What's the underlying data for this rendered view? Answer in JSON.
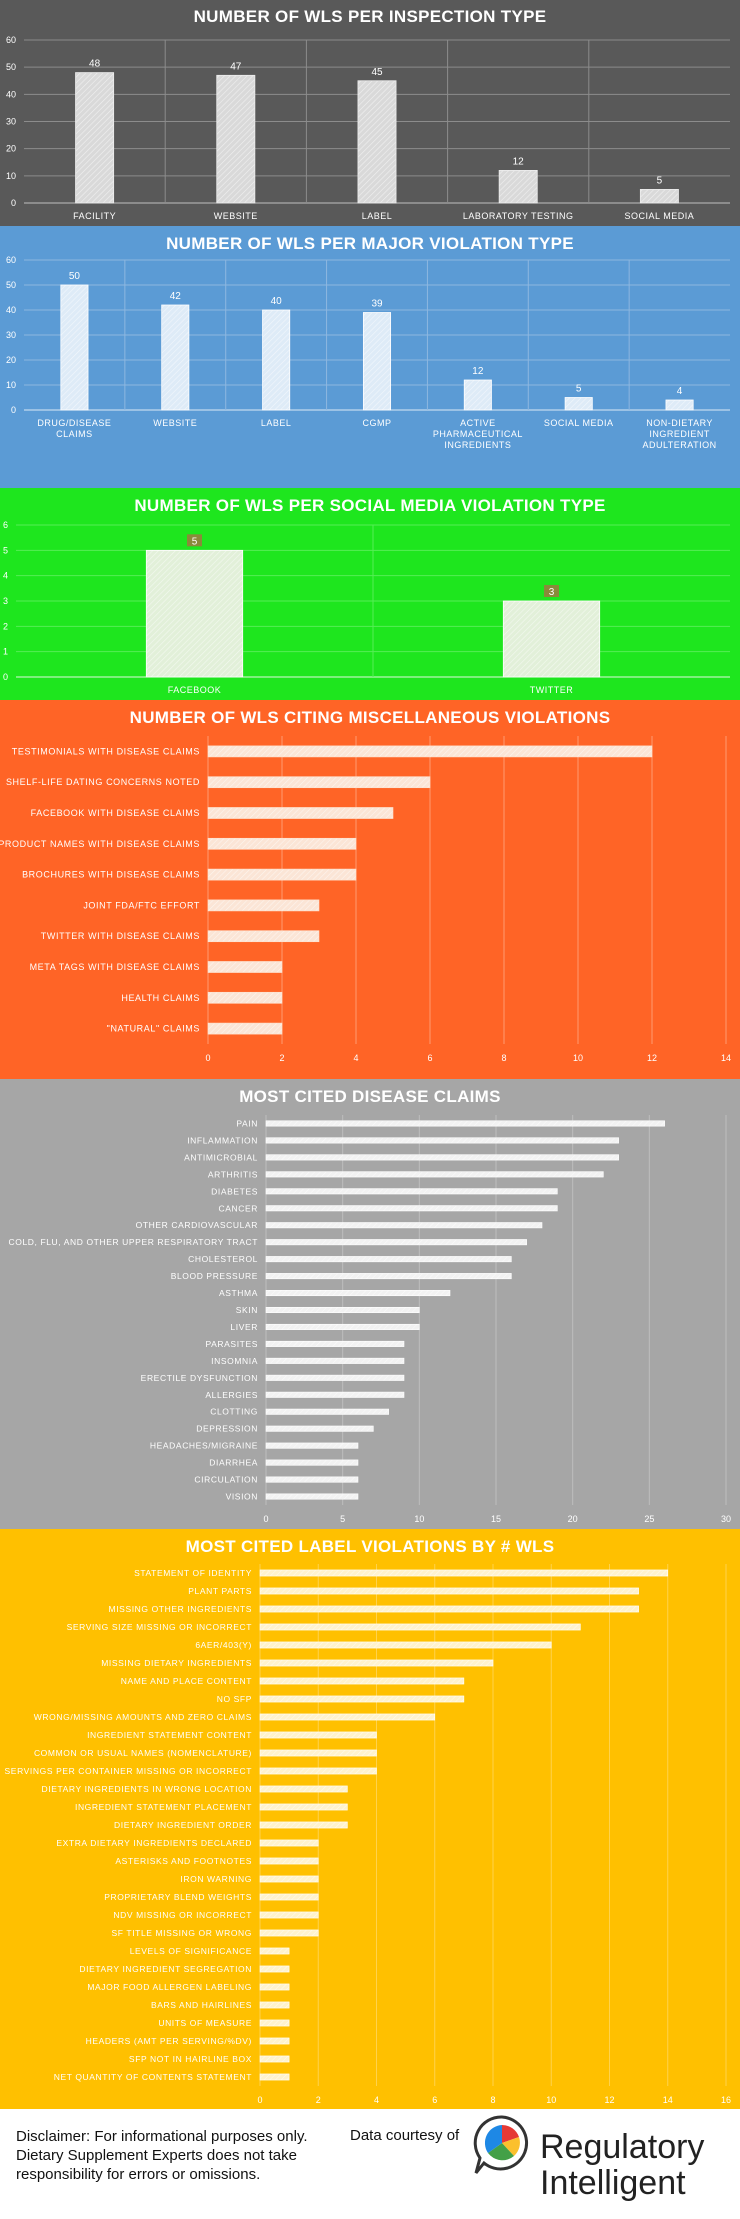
{
  "chart_data": [
    {
      "type": "bar",
      "title": "NUMBER OF WLS PER INSPECTION TYPE",
      "categories": [
        "FACILITY",
        "WEBSITE",
        "LABEL",
        "LABORATORY TESTING",
        "SOCIAL MEDIA"
      ],
      "values": [
        48,
        47,
        45,
        12,
        5
      ],
      "ylim": [
        0,
        60
      ],
      "yticks": [
        0,
        10,
        20,
        30,
        40,
        50,
        60
      ],
      "grid": true,
      "bar_color": "#d9d9d9"
    },
    {
      "type": "bar",
      "title": "NUMBER OF WLS PER MAJOR VIOLATION TYPE",
      "categories": [
        "DRUG/DISEASE CLAIMS",
        "WEBSITE",
        "LABEL",
        "CGMP",
        "ACTIVE PHARMACEUTICAL INGREDIENTS",
        "SOCIAL MEDIA",
        "NON-DIETARY INGREDIENT ADULTERATION"
      ],
      "values": [
        50,
        42,
        40,
        39,
        12,
        5,
        4
      ],
      "ylim": [
        0,
        60
      ],
      "yticks": [
        0,
        10,
        20,
        30,
        40,
        50,
        60
      ],
      "grid": true,
      "bar_color": "#deebf7"
    },
    {
      "type": "bar",
      "title": "NUMBER OF WLS PER SOCIAL MEDIA VIOLATION TYPE",
      "categories": [
        "FACEBOOK",
        "TWITTER"
      ],
      "values": [
        5,
        3
      ],
      "ylim": [
        0,
        6
      ],
      "yticks": [
        0,
        1,
        2,
        3,
        4,
        5,
        6
      ],
      "grid": true,
      "bar_color": "#e2f0d9"
    },
    {
      "type": "bar",
      "orientation": "horizontal",
      "title": "NUMBER OF WLS CITING MISCELLANEOUS VIOLATIONS",
      "categories": [
        "TESTIMONIALS WITH DISEASE CLAIMS",
        "SHELF-LIFE DATING CONCERNS NOTED",
        "FACEBOOK WITH DISEASE CLAIMS",
        "PRODUCT NAMES WITH DISEASE CLAIMS",
        "BROCHURES WITH DISEASE CLAIMS",
        "JOINT FDA/FTC EFFORT",
        "TWITTER WITH DISEASE CLAIMS",
        "META TAGS WITH DISEASE CLAIMS",
        "HEALTH CLAIMS",
        "\"NATURAL\" CLAIMS"
      ],
      "values": [
        12,
        6,
        5,
        4,
        4,
        3,
        3,
        2,
        2,
        2
      ],
      "xlim": [
        0,
        14
      ],
      "xticks": [
        0,
        2,
        4,
        6,
        8,
        10,
        12,
        14
      ],
      "grid": true,
      "bar_color": "#fbe5d6"
    },
    {
      "type": "bar",
      "orientation": "horizontal",
      "title": "MOST CITED DISEASE CLAIMS",
      "categories": [
        "PAIN",
        "INFLAMMATION",
        "ANTIMICROBIAL",
        "ARTHRITIS",
        "DIABETES",
        "CANCER",
        "OTHER CARDIOVASCULAR",
        "COLD, FLU, AND OTHER UPPER RESPIRATORY TRACT",
        "CHOLESTEROL",
        "BLOOD PRESSURE",
        "ASTHMA",
        "SKIN",
        "LIVER",
        "PARASITES",
        "INSOMNIA",
        "ERECTILE DYSFUNCTION",
        "ALLERGIES",
        "CLOTTING",
        "DEPRESSION",
        "HEADACHES/MIGRAINE",
        "DIARRHEA",
        "CIRCULATION",
        "VISION"
      ],
      "values": [
        26,
        23,
        23,
        22,
        19,
        19,
        18,
        17,
        16,
        16,
        12,
        10,
        10,
        9,
        9,
        9,
        9,
        8,
        7,
        6,
        6,
        6,
        6
      ],
      "xlim": [
        0,
        30
      ],
      "xticks": [
        0,
        5,
        10,
        15,
        20,
        25,
        30
      ],
      "grid": true,
      "bar_color": "#f2f2f2"
    },
    {
      "type": "bar",
      "orientation": "horizontal",
      "title": "MOST CITED LABEL VIOLATIONS BY # WLS",
      "categories": [
        "STATEMENT OF IDENTITY",
        "PLANT PARTS",
        "MISSING OTHER INGREDIENTS",
        "SERVING SIZE MISSING OR INCORRECT",
        "6AER/403(Y)",
        "MISSING DIETARY INGREDIENTS",
        "NAME AND PLACE CONTENT",
        "NO SFP",
        "WRONG/MISSING AMOUNTS AND ZERO CLAIMS",
        "INGREDIENT STATEMENT CONTENT",
        "COMMON OR USUAL NAMES (NOMENCLATURE)",
        "SERVINGS PER CONTAINER MISSING OR INCORRECT",
        "DIETARY INGREDIENTS IN WRONG LOCATION",
        "INGREDIENT STATEMENT PLACEMENT",
        "DIETARY INGREDIENT ORDER",
        "EXTRA DIETARY INGREDIENTS DECLARED",
        "ASTERISKS AND FOOTNOTES",
        "IRON WARNING",
        "PROPRIETARY BLEND WEIGHTS",
        "NDV MISSING OR INCORRECT",
        "SF TITLE MISSING OR WRONG",
        "LEVELS OF SIGNIFICANCE",
        "DIETARY INGREDIENT SEGREGATION",
        "MAJOR FOOD ALLERGEN LABELING",
        "BARS AND HAIRLINES",
        "UNITS OF MEASURE",
        "HEADERS (AMT PER SERVING/%DV)",
        "SFP NOT IN HAIRLINE BOX",
        "NET QUANTITY OF CONTENTS STATEMENT"
      ],
      "values": [
        14,
        13,
        13,
        11,
        10,
        8,
        7,
        7,
        6,
        4,
        4,
        4,
        3,
        3,
        3,
        2,
        2,
        2,
        2,
        2,
        2,
        1,
        1,
        1,
        1,
        1,
        1,
        1,
        1
      ],
      "xlim": [
        0,
        16
      ],
      "xticks": [
        0,
        2,
        4,
        6,
        8,
        10,
        12,
        14,
        16
      ],
      "grid": true,
      "bar_color": "#fff2cc"
    }
  ],
  "colors": {
    "panel1": "#595959",
    "panel2": "#5b9bd5",
    "panel3": "#1ee61e",
    "panel4": "#ff6426",
    "panel5": "#a6a6a6",
    "panel6": "#ffc000"
  },
  "footer": {
    "disclaimer": "Disclaimer: For informational purposes only. Dietary Supplement Experts does not take responsibility for errors or omissions.",
    "courtesy": "Data courtesy of",
    "brand_line1": "Regulatory",
    "brand_line2": "Intelligent",
    "logo_icon": "speech-bubble-pie-chart-icon"
  }
}
